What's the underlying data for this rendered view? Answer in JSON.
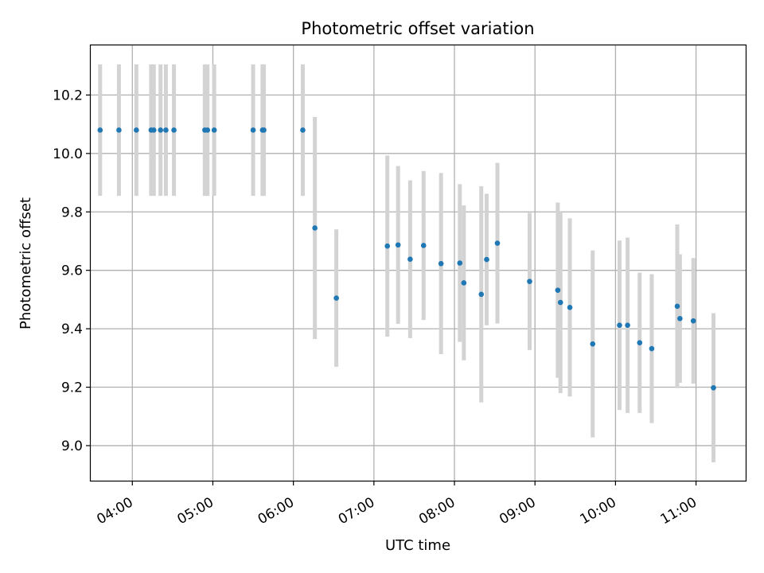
{
  "chart_data": {
    "type": "scatter",
    "title": "Photometric offset variation",
    "xlabel": "UTC time",
    "ylabel": "Photometric offset",
    "xlim": [
      "03:29",
      "11:37"
    ],
    "ylim": [
      8.88,
      10.37
    ],
    "grid": true,
    "x_ticks": [
      "04:00",
      "05:00",
      "06:00",
      "07:00",
      "08:00",
      "09:00",
      "10:00",
      "11:00"
    ],
    "y_ticks": [
      9.0,
      9.2,
      9.4,
      9.6,
      9.8,
      10.0,
      10.2
    ],
    "colors": {
      "marker": "#1f77b4",
      "errorbar": "#d3d3d3",
      "grid": "#b0b0b0",
      "axes": "#000000"
    },
    "series": [
      {
        "x": [
          "03:36",
          "03:50",
          "04:03",
          "04:14",
          "04:16",
          "04:21",
          "04:25",
          "04:31",
          "04:54",
          "04:56",
          "05:01",
          "05:30",
          "05:37",
          "05:38",
          "06:07",
          "06:16",
          "06:32",
          "07:10",
          "07:18",
          "07:27",
          "07:37",
          "07:50",
          "08:04",
          "08:07",
          "08:20",
          "08:24",
          "08:32",
          "08:56",
          "09:17",
          "09:19",
          "09:26",
          "09:43",
          "10:03",
          "10:09",
          "10:18",
          "10:27",
          "10:46",
          "10:48",
          "10:58",
          "11:13"
        ],
        "y": [
          10.08,
          10.08,
          10.08,
          10.08,
          10.08,
          10.08,
          10.08,
          10.08,
          10.08,
          10.08,
          10.08,
          10.08,
          10.08,
          10.08,
          10.08,
          9.745,
          9.505,
          9.683,
          9.687,
          9.638,
          9.685,
          9.623,
          9.625,
          9.557,
          9.518,
          9.637,
          9.693,
          9.562,
          9.532,
          9.49,
          9.473,
          9.348,
          9.412,
          9.412,
          9.352,
          9.332,
          9.477,
          9.435,
          9.427,
          9.198
        ],
        "y_err": [
          0.225,
          0.225,
          0.225,
          0.225,
          0.225,
          0.225,
          0.225,
          0.225,
          0.225,
          0.225,
          0.225,
          0.225,
          0.225,
          0.225,
          0.225,
          0.38,
          0.235,
          0.31,
          0.27,
          0.27,
          0.255,
          0.31,
          0.27,
          0.265,
          0.37,
          0.225,
          0.275,
          0.235,
          0.3,
          0.31,
          0.305,
          0.32,
          0.29,
          0.3,
          0.24,
          0.255,
          0.28,
          0.22,
          0.215,
          0.255
        ]
      }
    ]
  }
}
